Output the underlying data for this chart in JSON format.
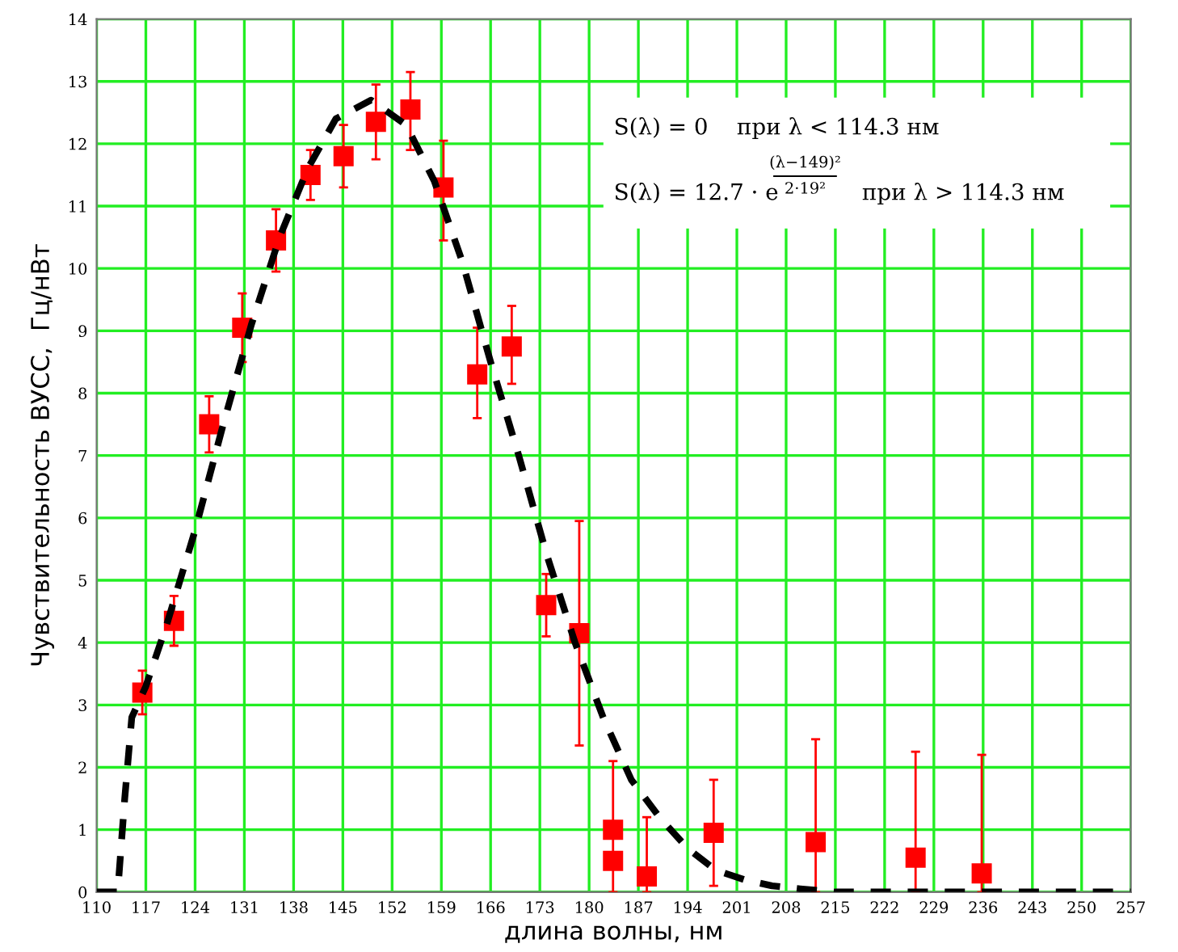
{
  "chart_data": {
    "type": "scatter",
    "xlabel": "длина волны, нм",
    "ylabel": "Чувствительность ВУСС,  Гц/нВт",
    "xlim": [
      110,
      257
    ],
    "xticks": [
      110,
      117,
      124,
      131,
      138,
      145,
      152,
      159,
      166,
      173,
      180,
      187,
      194,
      201,
      208,
      215,
      222,
      229,
      236,
      243,
      250,
      257
    ],
    "ylim": [
      0,
      14
    ],
    "yticks": [
      0,
      1,
      2,
      3,
      4,
      5,
      6,
      7,
      8,
      9,
      10,
      11,
      12,
      13,
      14
    ],
    "grid": true,
    "legend": false,
    "series": [
      {
        "color": "#ff0000",
        "marker": "square",
        "x": [
          116.5,
          121,
          126,
          130.7,
          135.5,
          140.4,
          145.1,
          149.7,
          154.6,
          159.3,
          164.1,
          169,
          173.9,
          178.6,
          183.4,
          183.4,
          188.2,
          197.7,
          212.2,
          226.4,
          235.8
        ],
        "values": [
          3.2,
          4.35,
          7.5,
          9.05,
          10.45,
          11.5,
          11.8,
          12.35,
          12.55,
          11.3,
          8.3,
          8.75,
          4.6,
          4.15,
          1.0,
          0.5,
          0.25,
          0.95,
          0.8,
          0.55,
          0.3
        ],
        "errors": [
          [
            2.85,
            3.55
          ],
          [
            3.95,
            4.75
          ],
          [
            7.05,
            7.95
          ],
          [
            8.5,
            9.6
          ],
          [
            9.95,
            10.95
          ],
          [
            11.1,
            11.9
          ],
          [
            11.3,
            12.3
          ],
          [
            11.75,
            12.95
          ],
          [
            11.9,
            13.15
          ],
          [
            10.45,
            12.05
          ],
          [
            7.6,
            9.05
          ],
          [
            8.15,
            9.4
          ],
          [
            4.1,
            5.1
          ],
          [
            2.35,
            5.95
          ],
          [
            0,
            2.1
          ],
          null,
          [
            0,
            1.2
          ],
          [
            0.1,
            1.8
          ],
          [
            0,
            2.45
          ],
          [
            0,
            2.25
          ],
          [
            0,
            2.2
          ]
        ]
      },
      {
        "type": "line",
        "color": "#000000",
        "line_style": "dashed",
        "marker": "none",
        "x": [
          110,
          113,
          114,
          115,
          117,
          120,
          124,
          128,
          132,
          136,
          140,
          144,
          149,
          154,
          158,
          162,
          166,
          170,
          174,
          178,
          182,
          186,
          190,
          194,
          198,
          202,
          206,
          210,
          215,
          257
        ],
        "values": [
          0,
          0,
          1.5,
          2.8,
          3.3,
          4.3,
          5.8,
          7.5,
          9.1,
          10.5,
          11.6,
          12.4,
          12.7,
          12.3,
          11.4,
          10.1,
          8.5,
          7.0,
          5.4,
          4.0,
          2.8,
          1.8,
          1.2,
          0.7,
          0.35,
          0.2,
          0.1,
          0.05,
          0,
          0
        ]
      }
    ],
    "annotations": [
      "S(λ) = 0    при λ < 114.3 нм",
      "S(λ) = 12.7 · e",
      "(λ−149)²",
      "2·19²",
      "при λ > 114.3 нм"
    ]
  }
}
